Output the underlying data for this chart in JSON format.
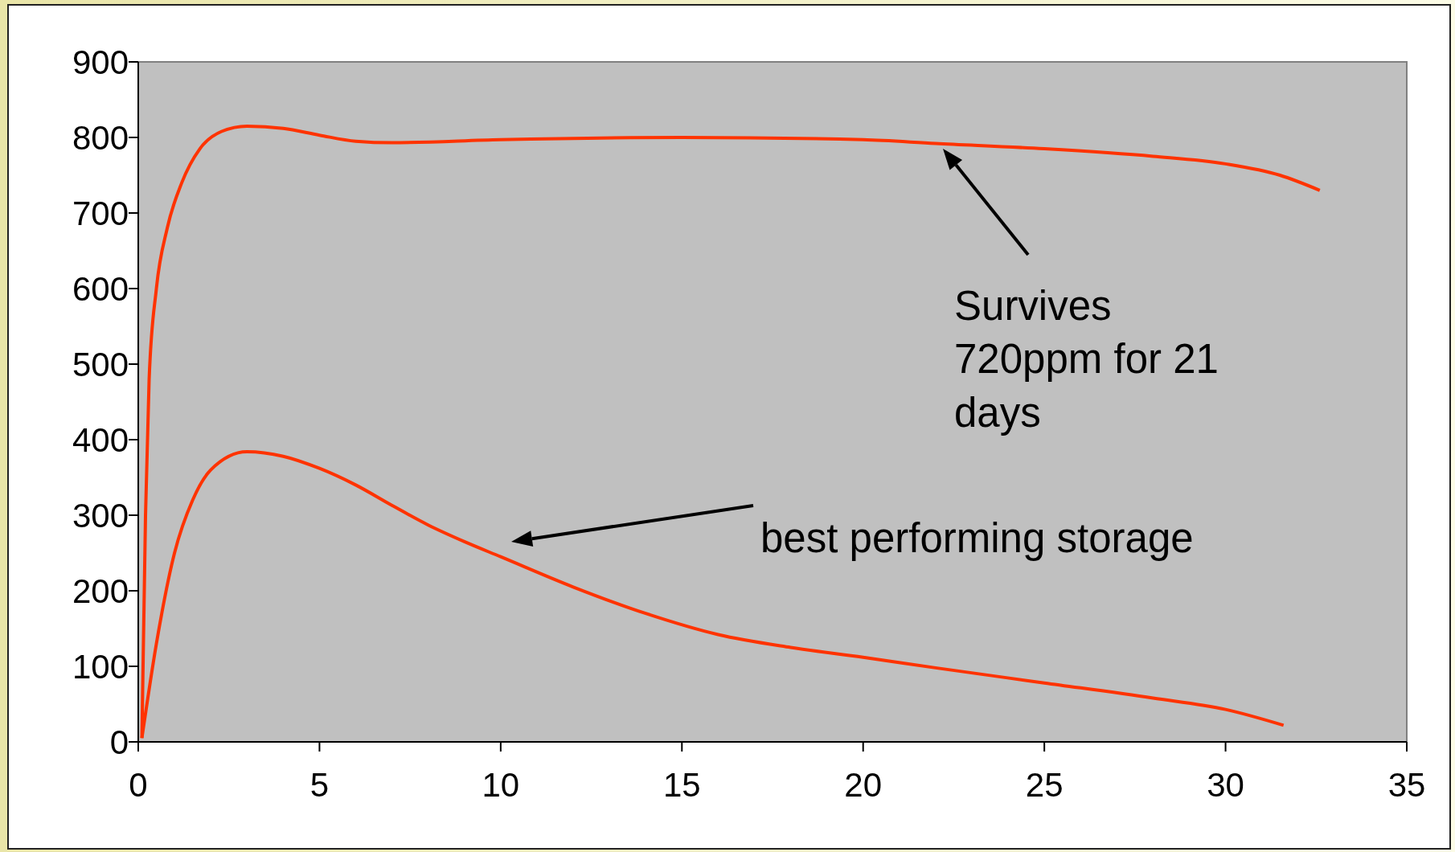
{
  "chart_data": {
    "type": "line",
    "xlim": [
      0,
      35
    ],
    "xticks": [
      0,
      5,
      10,
      15,
      20,
      25,
      30,
      35
    ],
    "ylim": [
      0,
      900
    ],
    "yticks": [
      0,
      100,
      200,
      300,
      400,
      500,
      600,
      700,
      800,
      900
    ],
    "grid": false,
    "marker": "none",
    "line_style": "solid",
    "series": [
      {
        "color": "#ff3300",
        "x": [
          0.1,
          0.2,
          0.3,
          0.5,
          0.8,
          1.2,
          1.7,
          2.3,
          3,
          4,
          5,
          6,
          7,
          10,
          15,
          20,
          22,
          25,
          28,
          30,
          31.5,
          32.6
        ],
        "values": [
          5,
          300,
          480,
          600,
          680,
          740,
          785,
          808,
          815,
          812,
          803,
          795,
          793,
          797,
          800,
          797,
          792,
          785,
          775,
          765,
          750,
          730
        ]
      },
      {
        "color": "#ff3300",
        "x": [
          0.1,
          0.5,
          1,
          1.5,
          2,
          3,
          4,
          5,
          6,
          7,
          8,
          9,
          10,
          12,
          14,
          16,
          18,
          20,
          22,
          25,
          28,
          30,
          31.6
        ],
        "values": [
          5,
          130,
          250,
          320,
          360,
          384,
          378,
          362,
          340,
          313,
          287,
          265,
          245,
          205,
          170,
          142,
          125,
          112,
          98,
          78,
          58,
          43,
          22
        ]
      }
    ],
    "annotations": [
      "Survives 720ppm for 21 days",
      "best performing storage"
    ]
  }
}
